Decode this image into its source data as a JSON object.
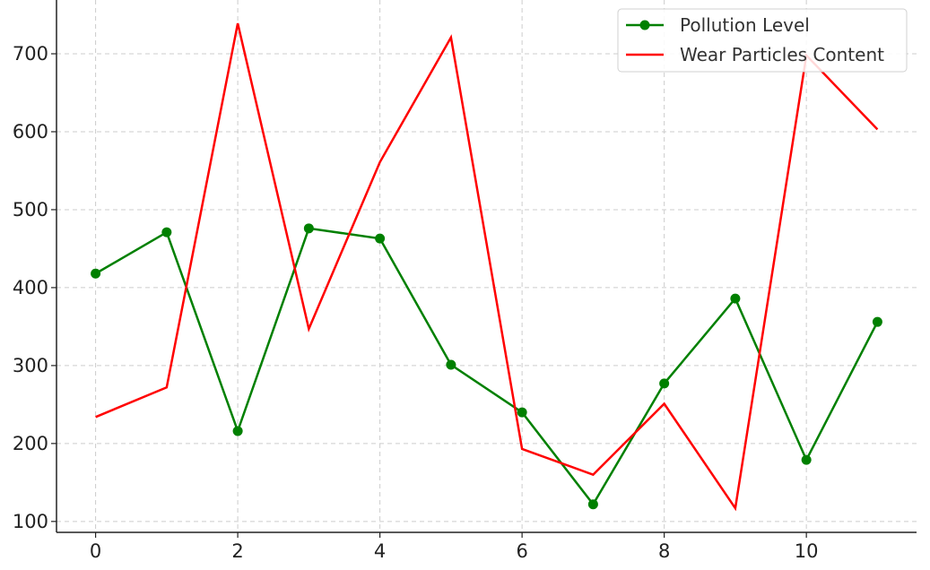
{
  "chart_data": {
    "type": "line",
    "title": "",
    "xlabel": "",
    "ylabel": "",
    "x": [
      0,
      1,
      2,
      3,
      4,
      5,
      6,
      7,
      8,
      9,
      10,
      11
    ],
    "xlim": [
      -0.55,
      11.55
    ],
    "ylim": [
      86,
      769
    ],
    "xticks": [
      0,
      2,
      4,
      6,
      8,
      10
    ],
    "yticks": [
      100,
      200,
      300,
      400,
      500,
      600,
      700
    ],
    "grid": true,
    "legend_position": "top-right",
    "series": [
      {
        "name": "Pollution Level",
        "color": "#008000",
        "marker": "circle",
        "values": [
          418,
          471,
          216,
          476,
          463,
          301,
          240,
          122,
          277,
          386,
          179,
          356
        ]
      },
      {
        "name": "Wear Particles Content",
        "color": "#ff0000",
        "marker": "none",
        "values": [
          234,
          272,
          739,
          347,
          561,
          721,
          193,
          160,
          251,
          117,
          698,
          603
        ]
      }
    ]
  }
}
